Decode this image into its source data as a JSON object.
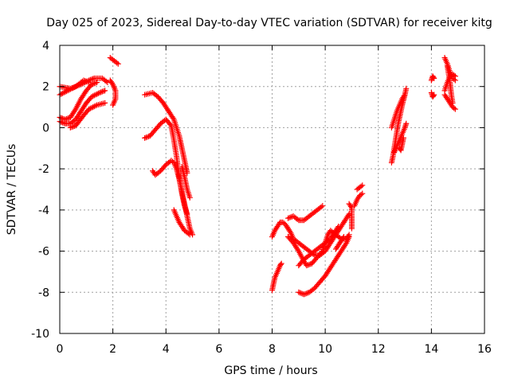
{
  "chart_data": {
    "type": "scatter",
    "title": "Day 025 of 2023, Sidereal Day-to-day VTEC variation (SDTVAR) for receiver kitg",
    "xlabel": "GPS time / hours",
    "ylabel": "SDTVAR / TECUs",
    "xlim": [
      0,
      16
    ],
    "ylim": [
      -10,
      4
    ],
    "xticks": [
      0,
      2,
      4,
      6,
      8,
      10,
      12,
      14,
      16
    ],
    "yticks": [
      -10,
      -8,
      -6,
      -4,
      -2,
      0,
      2,
      4
    ],
    "grid": true,
    "marker": "+",
    "color": "#ff0000",
    "tracks": [
      {
        "points": [
          [
            0.0,
            2.0
          ],
          [
            0.4,
            1.9
          ],
          [
            0.8,
            2.1
          ],
          [
            1.1,
            2.3
          ],
          [
            1.3,
            2.4
          ],
          [
            1.6,
            2.4
          ],
          [
            1.8,
            2.2
          ]
        ]
      },
      {
        "points": [
          [
            0.0,
            1.6
          ],
          [
            0.3,
            1.8
          ],
          [
            0.6,
            2.0
          ],
          [
            0.9,
            2.3
          ],
          [
            1.1,
            2.2
          ]
        ]
      },
      {
        "points": [
          [
            0.0,
            0.5
          ],
          [
            0.2,
            0.4
          ],
          [
            0.4,
            0.5
          ],
          [
            0.6,
            0.9
          ],
          [
            0.8,
            1.4
          ],
          [
            1.0,
            1.8
          ],
          [
            1.2,
            2.1
          ],
          [
            1.4,
            2.2
          ]
        ]
      },
      {
        "points": [
          [
            0.0,
            0.3
          ],
          [
            0.2,
            0.2
          ],
          [
            0.4,
            0.2
          ],
          [
            0.6,
            0.4
          ],
          [
            0.8,
            0.8
          ],
          [
            1.0,
            1.2
          ],
          [
            1.2,
            1.5
          ],
          [
            1.5,
            1.7
          ],
          [
            1.7,
            1.8
          ]
        ]
      },
      {
        "points": [
          [
            0.4,
            0.0
          ],
          [
            0.6,
            0.1
          ],
          [
            0.9,
            0.6
          ],
          [
            1.1,
            0.9
          ],
          [
            1.4,
            1.1
          ],
          [
            1.7,
            1.2
          ]
        ]
      },
      {
        "points": [
          [
            1.9,
            3.4
          ],
          [
            2.0,
            3.3
          ],
          [
            2.1,
            3.2
          ],
          [
            2.2,
            3.1
          ]
        ]
      },
      {
        "points": [
          [
            1.9,
            2.3
          ],
          [
            2.0,
            2.1
          ],
          [
            2.1,
            1.8
          ],
          [
            2.1,
            1.4
          ],
          [
            2.0,
            1.1
          ]
        ]
      },
      {
        "points": [
          [
            3.2,
            1.6
          ],
          [
            3.5,
            1.7
          ],
          [
            3.7,
            1.5
          ],
          [
            3.9,
            1.2
          ],
          [
            4.1,
            0.8
          ],
          [
            4.3,
            0.4
          ],
          [
            4.5,
            -0.4
          ],
          [
            4.6,
            -1.0
          ],
          [
            4.7,
            -1.6
          ],
          [
            4.8,
            -2.2
          ]
        ]
      },
      {
        "points": [
          [
            3.2,
            -0.5
          ],
          [
            3.4,
            -0.4
          ],
          [
            3.6,
            -0.1
          ],
          [
            3.8,
            0.2
          ],
          [
            4.0,
            0.4
          ],
          [
            4.2,
            0.1
          ],
          [
            4.3,
            -0.6
          ],
          [
            4.4,
            -1.4
          ],
          [
            4.5,
            -2.4
          ],
          [
            4.6,
            -3.2
          ],
          [
            4.7,
            -3.8
          ],
          [
            4.8,
            -4.2
          ]
        ]
      },
      {
        "points": [
          [
            3.5,
            -2.1
          ],
          [
            3.6,
            -2.3
          ],
          [
            3.8,
            -2.1
          ],
          [
            4.0,
            -1.8
          ],
          [
            4.2,
            -1.6
          ],
          [
            4.3,
            -1.7
          ],
          [
            4.4,
            -2.0
          ],
          [
            4.5,
            -2.5
          ],
          [
            4.6,
            -3.1
          ],
          [
            4.7,
            -3.7
          ],
          [
            4.8,
            -4.3
          ],
          [
            4.9,
            -4.9
          ],
          [
            5.0,
            -5.2
          ]
        ]
      },
      {
        "points": [
          [
            4.3,
            -4.0
          ],
          [
            4.4,
            -4.3
          ],
          [
            4.5,
            -4.6
          ],
          [
            4.7,
            -5.0
          ],
          [
            4.9,
            -5.2
          ]
        ]
      },
      {
        "points": [
          [
            4.9,
            -3.4
          ],
          [
            4.8,
            -3.0
          ],
          [
            4.7,
            -2.4
          ],
          [
            4.6,
            -1.9
          ]
        ]
      },
      {
        "points": [
          [
            8.0,
            -7.9
          ],
          [
            8.05,
            -7.6
          ],
          [
            8.1,
            -7.3
          ],
          [
            8.2,
            -7.0
          ],
          [
            8.3,
            -6.7
          ],
          [
            8.35,
            -6.6
          ]
        ]
      },
      {
        "points": [
          [
            8.0,
            -5.3
          ],
          [
            8.1,
            -5.0
          ],
          [
            8.2,
            -4.8
          ],
          [
            8.3,
            -4.6
          ],
          [
            8.4,
            -4.6
          ],
          [
            8.5,
            -4.7
          ],
          [
            8.6,
            -4.9
          ],
          [
            8.7,
            -5.1
          ],
          [
            8.8,
            -5.4
          ],
          [
            9.0,
            -5.6
          ],
          [
            9.2,
            -5.8
          ],
          [
            9.4,
            -6.0
          ],
          [
            9.6,
            -6.2
          ],
          [
            9.8,
            -6.2
          ],
          [
            10.0,
            -6.0
          ],
          [
            10.2,
            -5.6
          ],
          [
            10.4,
            -5.2
          ],
          [
            10.6,
            -4.8
          ],
          [
            10.8,
            -4.4
          ],
          [
            10.9,
            -4.2
          ]
        ]
      },
      {
        "points": [
          [
            8.6,
            -4.4
          ],
          [
            8.8,
            -4.3
          ],
          [
            9.0,
            -4.5
          ],
          [
            9.2,
            -4.5
          ],
          [
            9.4,
            -4.3
          ],
          [
            9.6,
            -4.1
          ],
          [
            9.8,
            -3.9
          ],
          [
            9.9,
            -3.8
          ]
        ]
      },
      {
        "points": [
          [
            8.6,
            -5.3
          ],
          [
            8.8,
            -5.6
          ],
          [
            9.0,
            -6.0
          ],
          [
            9.2,
            -6.5
          ],
          [
            9.3,
            -6.7
          ],
          [
            9.5,
            -6.6
          ],
          [
            9.7,
            -6.3
          ],
          [
            9.9,
            -6.0
          ],
          [
            10.0,
            -5.6
          ],
          [
            10.1,
            -5.2
          ],
          [
            10.2,
            -5.0
          ],
          [
            10.4,
            -5.2
          ],
          [
            10.6,
            -5.4
          ],
          [
            10.8,
            -5.4
          ],
          [
            10.9,
            -5.2
          ]
        ]
      },
      {
        "points": [
          [
            9.0,
            -6.7
          ],
          [
            9.2,
            -6.4
          ],
          [
            9.4,
            -6.2
          ],
          [
            9.6,
            -6.0
          ],
          [
            9.8,
            -5.8
          ],
          [
            10.0,
            -5.6
          ],
          [
            10.2,
            -5.4
          ],
          [
            10.4,
            -5.0
          ],
          [
            10.5,
            -4.8
          ]
        ]
      },
      {
        "points": [
          [
            9.0,
            -8.0
          ],
          [
            9.2,
            -8.1
          ],
          [
            9.4,
            -8.0
          ],
          [
            9.6,
            -7.8
          ],
          [
            9.8,
            -7.5
          ],
          [
            10.0,
            -7.2
          ],
          [
            10.2,
            -6.8
          ],
          [
            10.4,
            -6.4
          ],
          [
            10.6,
            -6.0
          ],
          [
            10.8,
            -5.6
          ],
          [
            10.9,
            -5.3
          ]
        ]
      },
      {
        "points": [
          [
            10.4,
            -5.9
          ],
          [
            10.5,
            -5.7
          ],
          [
            10.6,
            -5.5
          ],
          [
            10.7,
            -5.3
          ]
        ]
      },
      {
        "points": [
          [
            10.9,
            -3.7
          ],
          [
            11.0,
            -3.9
          ],
          [
            11.0,
            -4.3
          ],
          [
            11.0,
            -4.6
          ],
          [
            11.0,
            -4.9
          ]
        ]
      },
      {
        "points": [
          [
            11.1,
            -3.8
          ],
          [
            11.2,
            -3.5
          ],
          [
            11.3,
            -3.3
          ],
          [
            11.4,
            -3.2
          ]
        ]
      },
      {
        "points": [
          [
            11.2,
            -3.0
          ],
          [
            11.3,
            -2.9
          ],
          [
            11.4,
            -2.8
          ]
        ]
      },
      {
        "points": [
          [
            12.5,
            -1.7
          ],
          [
            12.55,
            -1.4
          ],
          [
            12.6,
            -1.0
          ],
          [
            12.65,
            -0.6
          ],
          [
            12.7,
            -0.2
          ],
          [
            12.75,
            0.2
          ],
          [
            12.8,
            0.5
          ],
          [
            12.85,
            0.8
          ],
          [
            12.9,
            1.1
          ],
          [
            13.0,
            1.6
          ],
          [
            13.05,
            1.9
          ]
        ]
      },
      {
        "points": [
          [
            12.5,
            0.0
          ],
          [
            12.6,
            0.4
          ],
          [
            12.7,
            0.8
          ],
          [
            12.8,
            1.1
          ],
          [
            12.9,
            1.4
          ],
          [
            13.0,
            1.6
          ]
        ]
      },
      {
        "points": [
          [
            12.6,
            -1.2
          ],
          [
            12.7,
            -0.9
          ],
          [
            12.8,
            -0.6
          ],
          [
            12.9,
            -0.3
          ],
          [
            13.0,
            0.0
          ],
          [
            13.05,
            0.2
          ]
        ]
      },
      {
        "points": [
          [
            12.8,
            -1.0
          ],
          [
            12.85,
            -1.1
          ],
          [
            12.9,
            -0.8
          ],
          [
            12.95,
            -0.5
          ]
        ]
      },
      {
        "points": [
          [
            14.0,
            2.3
          ],
          [
            14.05,
            2.5
          ],
          [
            14.1,
            2.4
          ]
        ]
      },
      {
        "points": [
          [
            14.0,
            1.7
          ],
          [
            14.05,
            1.5
          ],
          [
            14.1,
            1.6
          ]
        ]
      },
      {
        "points": [
          [
            14.5,
            3.4
          ],
          [
            14.6,
            3.1
          ],
          [
            14.7,
            2.7
          ],
          [
            14.8,
            2.4
          ],
          [
            14.9,
            2.3
          ]
        ]
      },
      {
        "points": [
          [
            14.5,
            1.8
          ],
          [
            14.6,
            2.2
          ],
          [
            14.7,
            2.5
          ],
          [
            14.8,
            2.6
          ],
          [
            14.9,
            2.5
          ]
        ]
      },
      {
        "points": [
          [
            14.5,
            1.6
          ],
          [
            14.6,
            1.4
          ],
          [
            14.7,
            1.2
          ],
          [
            14.8,
            1.0
          ],
          [
            14.9,
            0.9
          ]
        ]
      },
      {
        "points": [
          [
            14.6,
            3.0
          ],
          [
            14.7,
            2.2
          ],
          [
            14.75,
            1.6
          ],
          [
            14.8,
            1.2
          ]
        ]
      }
    ]
  }
}
